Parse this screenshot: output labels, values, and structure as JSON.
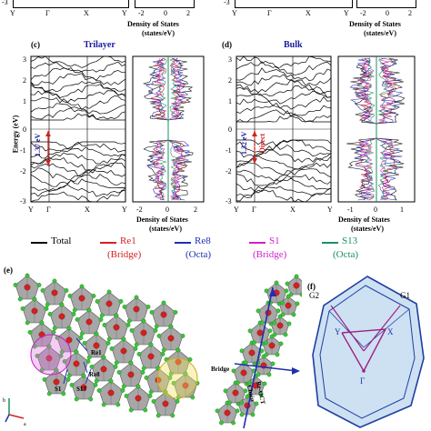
{
  "figure": {
    "top_strip": {
      "left_ticks_y": [
        "-3"
      ],
      "left_ticks_x": [
        "Y",
        "Γ",
        "X",
        "Y"
      ],
      "dos_ticks_x": [
        "-2",
        "0",
        "2"
      ],
      "dos_label_1": "Density of States",
      "dos_label_2": "(states/eV)",
      "right_ticks_y": [
        "-3"
      ],
      "right_ticks_x": [
        "Y",
        "Γ",
        "X",
        "Y"
      ],
      "right_dos_ticks_x": [
        "-2",
        "0",
        "2"
      ],
      "right_dos_label_1": "Density of States",
      "right_dos_label_2": "(states/eV)"
    },
    "panel_c": {
      "letter": "(c)",
      "title": "Trilayer",
      "gap_label": "1.37 eV",
      "y_axis_label": "Energy (eV)",
      "y_ticks": [
        "3",
        "2",
        "1",
        "0",
        "-1",
        "-2",
        "-3"
      ],
      "k_ticks": [
        "Y",
        "Γ",
        "X",
        "Y"
      ],
      "dos_ticks": [
        "-2",
        "0",
        "2"
      ],
      "dos_label_1": "Density of States",
      "dos_label_2": "(states/eV)"
    },
    "panel_d": {
      "letter": "(d)",
      "title": "Bulk",
      "gap_label": "1.32 eV",
      "direct_label": "Direct",
      "y_ticks": [
        "3",
        "2",
        "1",
        "0",
        "-1",
        "-2",
        "-3"
      ],
      "k_ticks": [
        "Y",
        "Γ",
        "X",
        "Y"
      ],
      "dos_ticks": [
        "-1",
        "0",
        "1"
      ],
      "dos_label_1": "Density of States",
      "dos_label_2": "(states/eV)"
    },
    "legend": {
      "items": [
        {
          "name": "Total",
          "sub": "",
          "color": "#000000"
        },
        {
          "name": "Re1",
          "sub": "(Bridge)",
          "color": "#d42020"
        },
        {
          "name": "Re8",
          "sub": "(Octa)",
          "color": "#1f2fb0"
        },
        {
          "name": "S1",
          "sub": "(Bridge)",
          "color": "#d020c8"
        },
        {
          "name": "S13",
          "sub": "(Octa)",
          "color": "#1a9060"
        }
      ]
    },
    "panel_e": {
      "letter": "(e)",
      "labels": {
        "re1": "Re1",
        "re8": "Re8",
        "s1": "S1",
        "s13": "S13",
        "bridge": "Bridge",
        "chain_1": "Re-OCT",
        "chain_2": "Chain",
        "axis_b": "b",
        "axis_a": "a"
      }
    },
    "panel_f": {
      "letter": "(f)",
      "labels": {
        "g1": "G1",
        "g2": "G2",
        "y": "Y",
        "x": "X",
        "gamma": "Γ"
      }
    }
  }
}
